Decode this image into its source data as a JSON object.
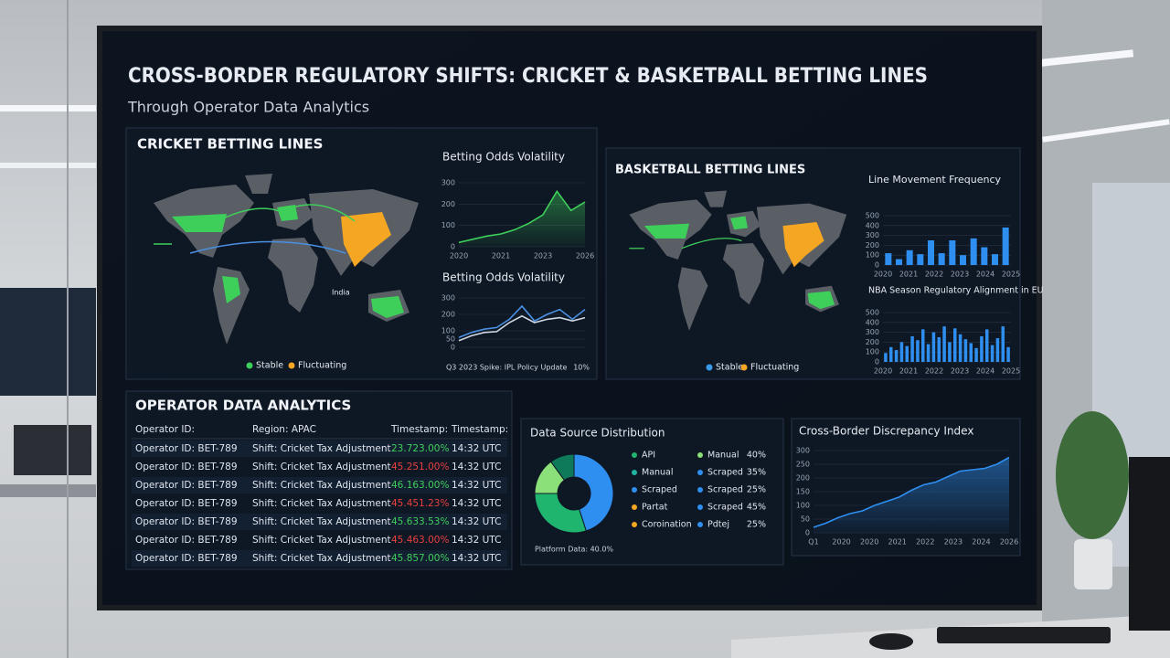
{
  "header": {
    "title": "CROSS-BORDER REGULATORY SHIFTS: CRICKET & BASKETBALL BETTING LINES",
    "subtitle": "Through Operator Data Analytics"
  },
  "cricket_panel": {
    "title": "CRICKET BETTING LINES",
    "map_label": "India",
    "legend": [
      {
        "name": "Stable",
        "color": "#3ecf5a"
      },
      {
        "name": "Fluctuating",
        "color": "#f5a623"
      }
    ]
  },
  "volatility_chart": {
    "title": "Betting Odds Volatility",
    "ylim": [
      0,
      300
    ],
    "yticks": [
      0,
      100,
      200,
      300
    ],
    "x_labels": [
      "2020",
      "2021",
      "2023",
      "2026"
    ],
    "series": [
      {
        "color": "#3ecf5a",
        "values": [
          20,
          35,
          50,
          60,
          80,
          110,
          150,
          260,
          170,
          210
        ]
      }
    ]
  },
  "volatility_chart_2": {
    "title": "Betting Odds Volatility",
    "ylim": [
      0,
      300
    ],
    "yticks": [
      0,
      50,
      100,
      200,
      300
    ],
    "annotation": "Q3 2023 Spike: IPL Policy Update",
    "annotation_value": "10%",
    "series": [
      {
        "color": "#4a90e2",
        "values": [
          60,
          90,
          110,
          120,
          170,
          250,
          160,
          200,
          230,
          170,
          230
        ]
      },
      {
        "color": "#cfd8e3",
        "values": [
          40,
          70,
          90,
          95,
          150,
          190,
          150,
          170,
          180,
          160,
          180
        ]
      }
    ]
  },
  "basketball_panel": {
    "title": "BASKETBALL BETTING LINES",
    "legend": [
      {
        "name": "Stable",
        "color": "#3a9be8"
      },
      {
        "name": "Fluctuating",
        "color": "#f5a623"
      }
    ]
  },
  "line_movement_chart": {
    "title": "Line Movement Frequency",
    "ylim": [
      0,
      500
    ],
    "yticks": [
      0,
      100,
      200,
      300,
      400,
      500
    ],
    "x_labels": [
      "2020",
      "2021",
      "2022",
      "2023",
      "2024",
      "2025"
    ],
    "color": "#2f8ff0",
    "values": [
      120,
      60,
      150,
      110,
      250,
      120,
      250,
      100,
      270,
      180,
      110,
      380
    ]
  },
  "nba_chart": {
    "title": "NBA Season Regulatory Alignment in EU",
    "ylim": [
      0,
      500
    ],
    "yticks": [
      0,
      100,
      200,
      300,
      400,
      500
    ],
    "x_labels": [
      "2020",
      "2021",
      "2022",
      "2023",
      "2024",
      "2025"
    ],
    "color": "#2f8ff0",
    "values": [
      90,
      150,
      120,
      200,
      160,
      260,
      220,
      330,
      180,
      300,
      250,
      360,
      200,
      340,
      280,
      230,
      190,
      140,
      260,
      330,
      170,
      240,
      360,
      150
    ]
  },
  "operator_table": {
    "title": "OPERATOR DATA ANALYTICS",
    "headers": [
      "Operator ID:",
      "Region: APAC",
      "Timestamp:",
      "Timestamp:"
    ],
    "rows": [
      {
        "id": "Operator ID: BET-789",
        "shift": "Shift: Cricket Tax Adjustment",
        "change": "23.723.00%",
        "time": "14:32 UTC",
        "change_color": "#3ecf5a"
      },
      {
        "id": "Operator ID: BET-789",
        "shift": "Shift: Cricket Tax Adjustment",
        "change": "45.251.00%",
        "time": "14:32 UTC",
        "change_color": "#e84040"
      },
      {
        "id": "Operator ID: BET-789",
        "shift": "Shift: Cricket Tax Adjustment",
        "change": "46.163.00%",
        "time": "14:32 UTC",
        "change_color": "#3ecf5a"
      },
      {
        "id": "Operator ID: BET-789",
        "shift": "Shift: Cricket Tax Adjustment",
        "change": "45.451.23%",
        "time": "14:32 UTC",
        "change_color": "#e84040"
      },
      {
        "id": "Operator ID: BET-789",
        "shift": "Shift: Cricket Tax Adjustment",
        "change": "45.633.53%",
        "time": "14:32 UTC",
        "change_color": "#3ecf5a"
      },
      {
        "id": "Operator ID: BET-789",
        "shift": "Shift: Cricket Tax Adjustment",
        "change": "45.463.00%",
        "time": "14:32 UTC",
        "change_color": "#e84040"
      },
      {
        "id": "Operator ID: BET-789",
        "shift": "Shift: Cricket Tax Adjustment",
        "change": "45.857.00%",
        "time": "14:32 UTC",
        "change_color": "#3ecf5a"
      }
    ]
  },
  "data_source": {
    "title": "Data Source Distribution",
    "center_label": "Platform Data: 40.0%",
    "donut": {
      "values": [
        45,
        30,
        15,
        10
      ],
      "colors": [
        "#2f8ff0",
        "#1fb56e",
        "#8be07a",
        "#0f7a5a"
      ]
    },
    "legend_left": [
      {
        "name": "API",
        "color": "#1fb56e"
      },
      {
        "name": "Manual",
        "color": "#1fb5a0"
      },
      {
        "name": "Scraped",
        "color": "#2f8ff0"
      },
      {
        "name": "Partat",
        "color": "#f5a623"
      },
      {
        "name": "Coroination",
        "color": "#f5a623"
      }
    ],
    "legend_right": [
      {
        "name": "Manual",
        "value": "40%",
        "color": "#8be07a"
      },
      {
        "name": "Scraped",
        "value": "35%",
        "color": "#2f8ff0"
      },
      {
        "name": "Scraped",
        "value": "25%",
        "color": "#2f8ff0"
      },
      {
        "name": "Scraped",
        "value": "45%",
        "color": "#2f8ff0"
      },
      {
        "name": "Pdtej",
        "value": "25%",
        "color": "#2f8ff0"
      }
    ]
  },
  "discrepancy_chart": {
    "title": "Cross-Border Discrepancy Index",
    "ylim": [
      0,
      300
    ],
    "yticks": [
      0,
      50,
      100,
      150,
      200,
      250,
      300
    ],
    "x_labels": [
      "Q1",
      "2020",
      "2020",
      "2021",
      "2022",
      "2023",
      "2024",
      "2026"
    ],
    "series": [
      {
        "color": "#2f8ff0",
        "values": [
          20,
          35,
          55,
          70,
          80,
          100,
          115,
          130,
          155,
          175,
          185,
          205,
          225,
          230,
          235,
          250,
          275
        ]
      }
    ]
  }
}
